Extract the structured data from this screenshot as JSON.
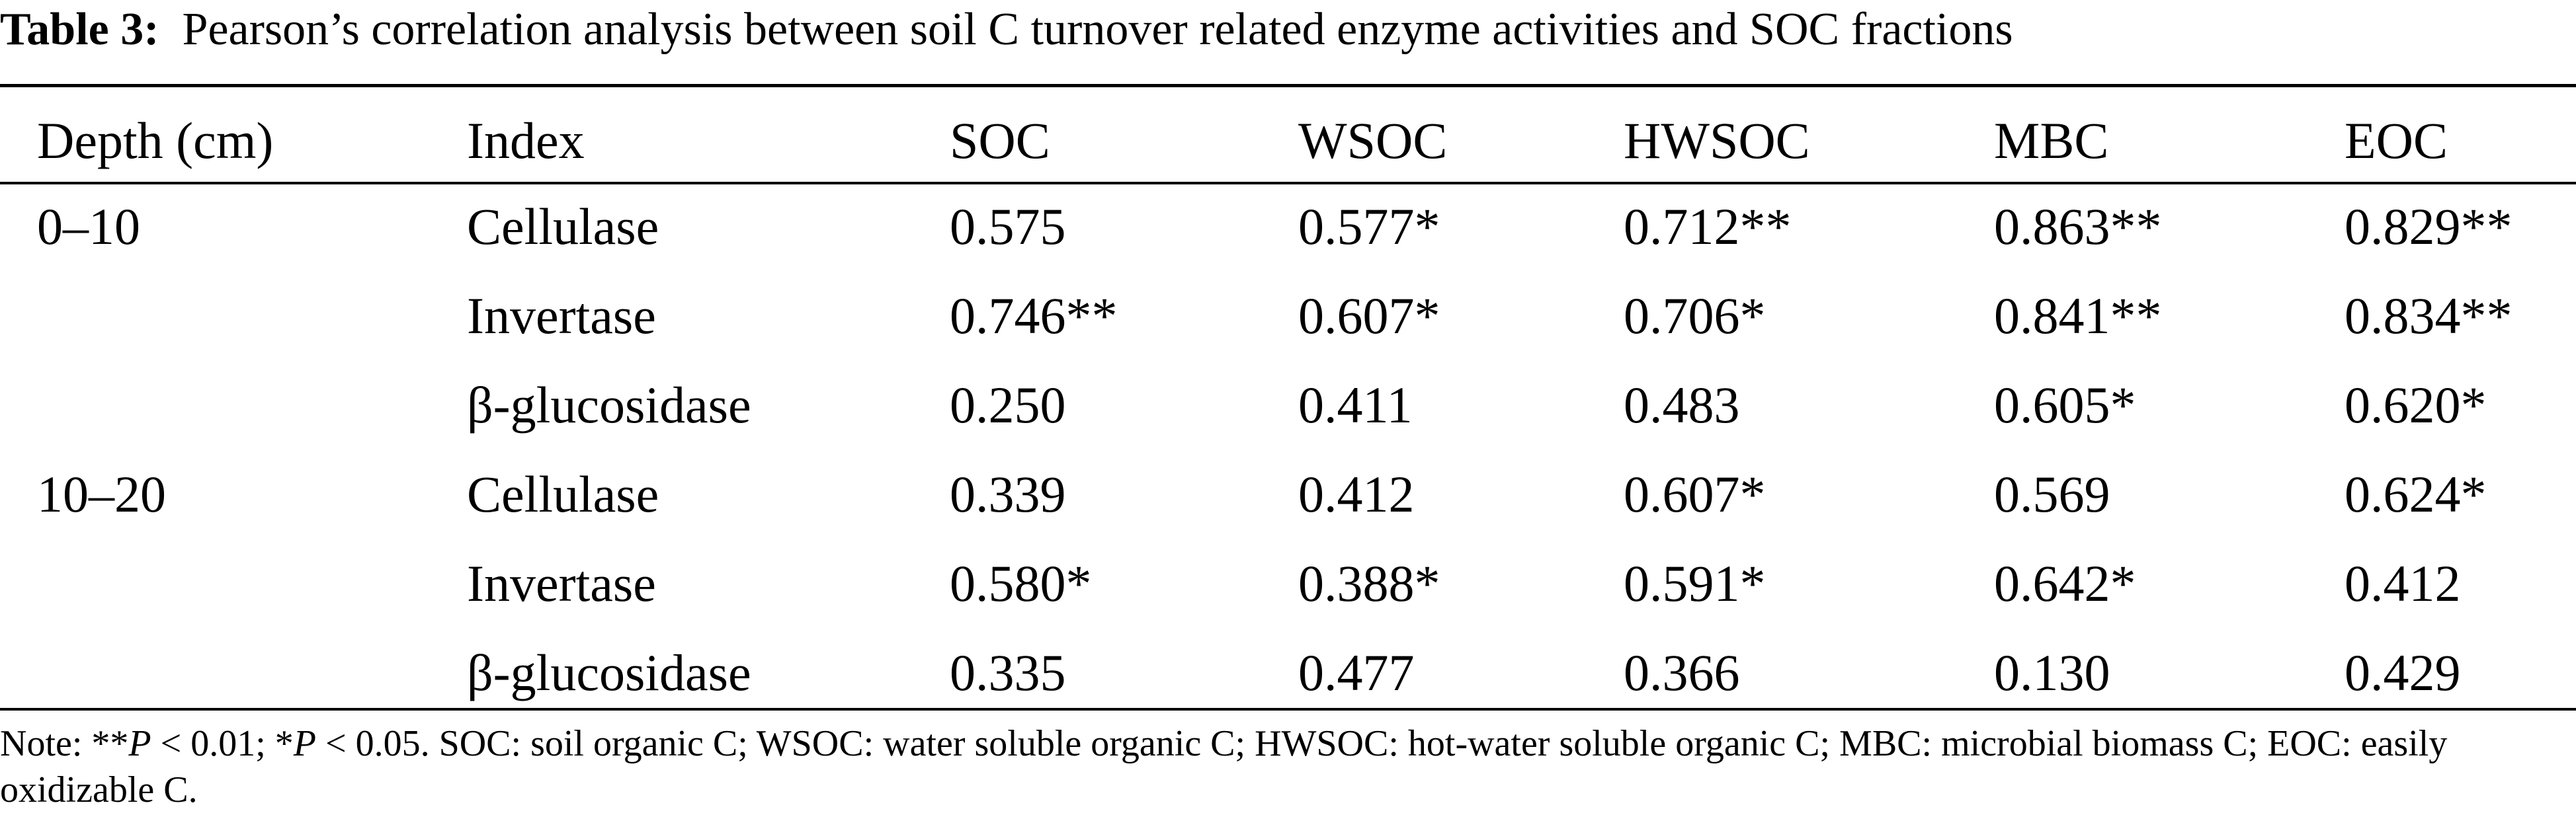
{
  "caption": {
    "label": "Table 3:",
    "text": "Pearson’s correlation analysis between soil C turnover related enzyme activities and SOC fractions"
  },
  "table": {
    "headers": [
      "Depth (cm)",
      "Index",
      "SOC",
      "WSOC",
      "HWSOC",
      "MBC",
      "EOC"
    ],
    "rows": [
      [
        "0–10",
        "Cellulase",
        "0.575",
        "0.577*",
        "0.712**",
        "0.863**",
        "0.829**"
      ],
      [
        "",
        "Invertase",
        "0.746**",
        "0.607*",
        "0.706*",
        "0.841**",
        "0.834**"
      ],
      [
        "",
        "β-glucosidase",
        "0.250",
        "0.411",
        "0.483",
        "0.605*",
        "0.620*"
      ],
      [
        "10–20",
        "Cellulase",
        "0.339",
        "0.412",
        "0.607*",
        "0.569",
        "0.624*"
      ],
      [
        "",
        "Invertase",
        "0.580*",
        "0.388*",
        "0.591*",
        "0.642*",
        "0.412"
      ],
      [
        "",
        "β-glucosidase",
        "0.335",
        "0.477",
        "0.366",
        "0.130",
        "0.429"
      ]
    ]
  },
  "note": {
    "prefix": "Note: **",
    "p1": "P",
    "mid1": " < 0.01; *",
    "p2": "P",
    "rest": " < 0.05. SOC: soil organic C; WSOC: water soluble organic C; HWSOC: hot-water soluble organic C; MBC: microbial biomass C; EOC: easily oxidizable C."
  }
}
